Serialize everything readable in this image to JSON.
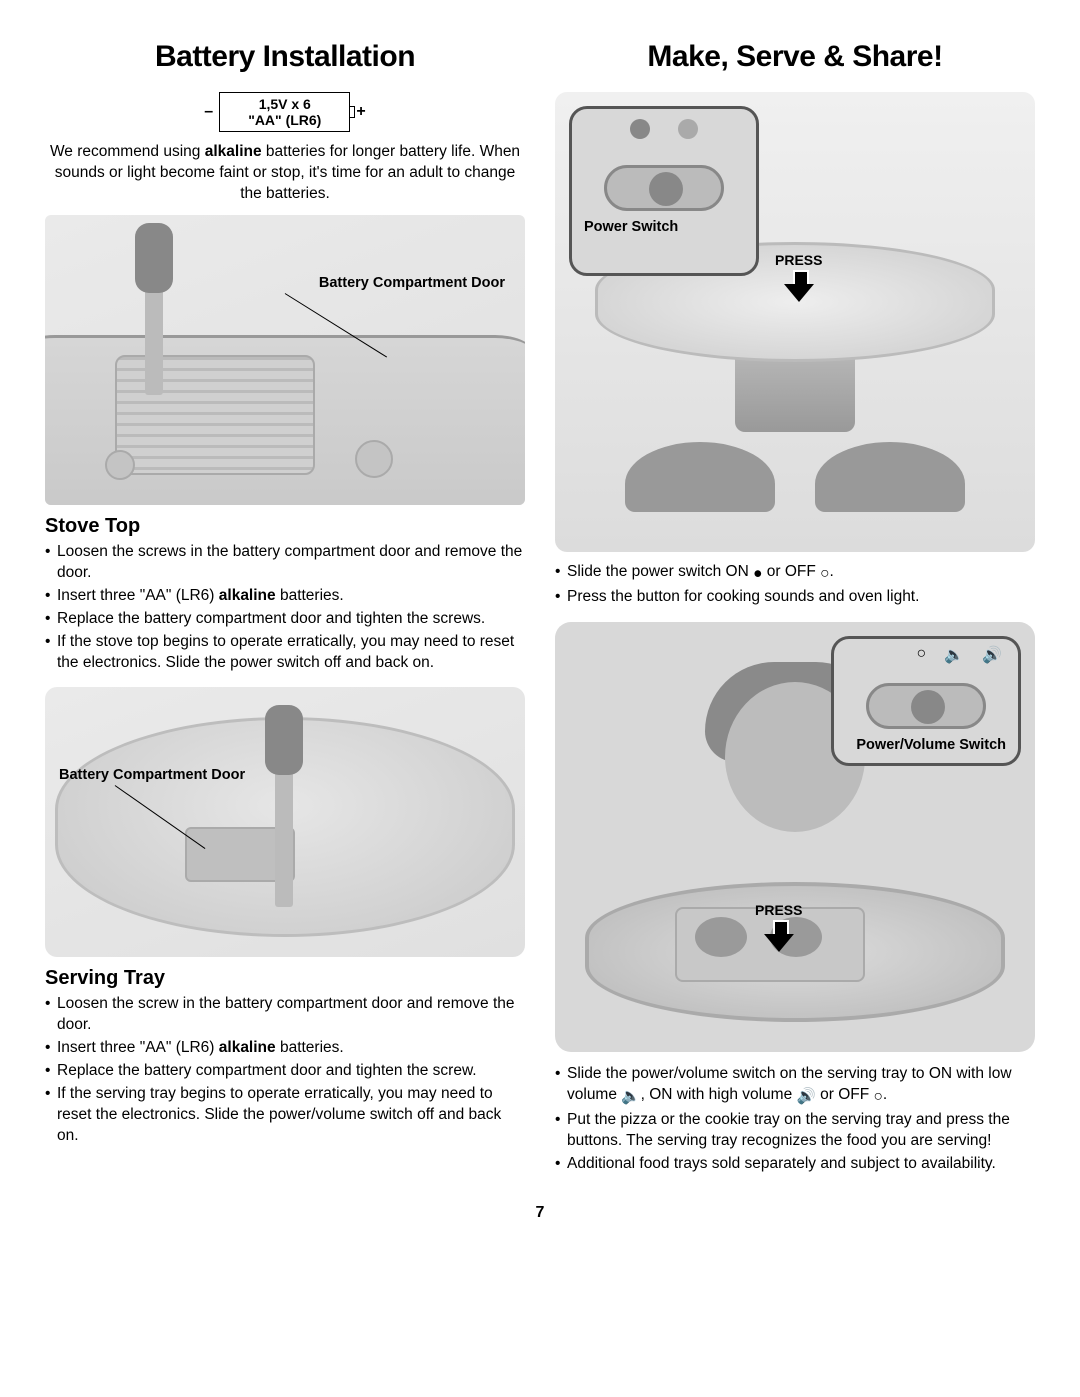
{
  "page_number": "7",
  "left": {
    "title": "Battery Installation",
    "battery_spec_line1": "1,5V x 6",
    "battery_spec_line2": "\"AA\" (LR6)",
    "minus": "–",
    "plus": "+",
    "intro_html": "We recommend using <b>alkaline</b> batteries for longer battery life. When sounds or light become faint or stop, it's time for an adult to change the batteries.",
    "fig1_label": "Battery Compartment Door",
    "section1_title": "Stove Top",
    "section1_bullets": [
      "Loosen the screws in the battery compartment door and remove the door.",
      "Insert three \"AA\" (LR6) <b>alkaline</b> batteries.",
      "Replace the battery compartment door and tighten the screws.",
      "If the stove top begins to operate erratically, you may need to reset the electronics. Slide the power switch off and back on."
    ],
    "fig2_label": "Battery Compartment Door",
    "section2_title": "Serving Tray",
    "section2_bullets": [
      "Loosen the screw in the battery compartment door and remove the door.",
      "Insert three \"AA\" (LR6) <b>alkaline</b> batteries.",
      "Replace the battery compartment door and tighten the screw.",
      "If the serving tray begins to operate erratically, you may need to reset the electronics. Slide the power/volume switch off and back on."
    ]
  },
  "right": {
    "title": "Make, Serve & Share!",
    "inset1_label": "Power Switch",
    "press_label": "PRESS",
    "bullets1": [
      "Slide the power switch ON ● or OFF ○.",
      "Press the button for cooking sounds and oven light."
    ],
    "inset2_label": "Power/Volume Switch",
    "bullets2": [
      "Slide the power/volume switch on the serving tray to ON with low volume 🔈, ON with high volume 🔊 or OFF ○.",
      "Put the pizza or the cookie tray on the serving tray and press the buttons. The serving tray recognizes the food you are serving!",
      "Additional food trays sold separately and subject to availability."
    ]
  },
  "colors": {
    "text": "#000000",
    "fig_bg": "#e0e0e0",
    "border": "#555555"
  }
}
